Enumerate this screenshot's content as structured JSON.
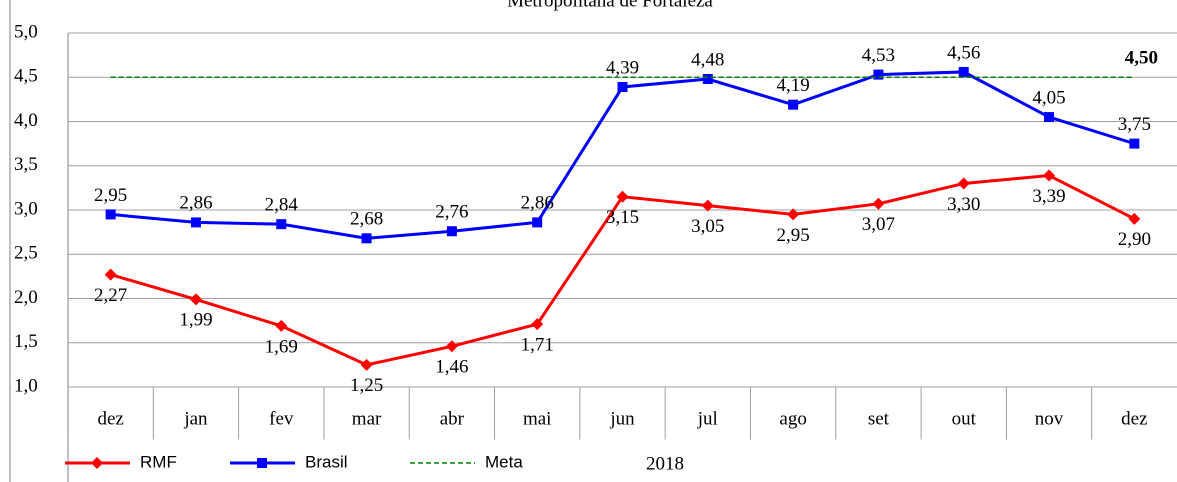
{
  "chart_data": {
    "type": "line",
    "title": "Metropolitana de Fortaleza",
    "categories": [
      "dez",
      "jan",
      "fev",
      "mar",
      "abr",
      "mai",
      "jun",
      "jul",
      "ago",
      "set",
      "out",
      "nov",
      "dez"
    ],
    "x_label": "2018",
    "series": [
      {
        "name": "RMF",
        "color": "#ff0000",
        "marker": "diamond",
        "values": [
          2.27,
          1.99,
          1.69,
          1.25,
          1.46,
          1.71,
          3.15,
          3.05,
          2.95,
          3.07,
          3.3,
          3.39,
          2.9
        ],
        "value_labels": [
          "2,27",
          "1,99",
          "1,69",
          "1,25",
          "1,46",
          "1,71",
          "3,15",
          "3,05",
          "2,95",
          "3,07",
          "3,30",
          "3,39",
          "2,90"
        ]
      },
      {
        "name": "Brasil",
        "color": "#0000ff",
        "marker": "square",
        "values": [
          2.95,
          2.86,
          2.84,
          2.68,
          2.76,
          2.86,
          4.39,
          4.48,
          4.19,
          4.53,
          4.56,
          4.05,
          3.75
        ],
        "value_labels": [
          "2,95",
          "2,86",
          "2,84",
          "2,68",
          "2,76",
          "2,86",
          "4,39",
          "4,48",
          "4,19",
          "4,53",
          "4,56",
          "4,05",
          "3,75"
        ]
      },
      {
        "name": "Meta",
        "color": "#008000",
        "dashed": true,
        "values": [
          4.5,
          4.5,
          4.5,
          4.5,
          4.5,
          4.5,
          4.5,
          4.5,
          4.5,
          4.5,
          4.5,
          4.5,
          4.5
        ]
      }
    ],
    "annotations": [
      {
        "text": "4,50",
        "value": 4.5,
        "color": "#4f6228"
      }
    ],
    "ylim": [
      1,
      5
    ],
    "yticks": [
      {
        "value": 1,
        "label": "1,0"
      },
      {
        "value": 1.5,
        "label": "1,5"
      },
      {
        "value": 2,
        "label": "2,0"
      },
      {
        "value": 2.5,
        "label": "2,5"
      },
      {
        "value": 3,
        "label": "3,0"
      },
      {
        "value": 3.5,
        "label": "3,5"
      },
      {
        "value": 4,
        "label": "4,0"
      },
      {
        "value": 4.5,
        "label": "4,5"
      },
      {
        "value": 5,
        "label": "5,0"
      }
    ],
    "grid": true
  }
}
